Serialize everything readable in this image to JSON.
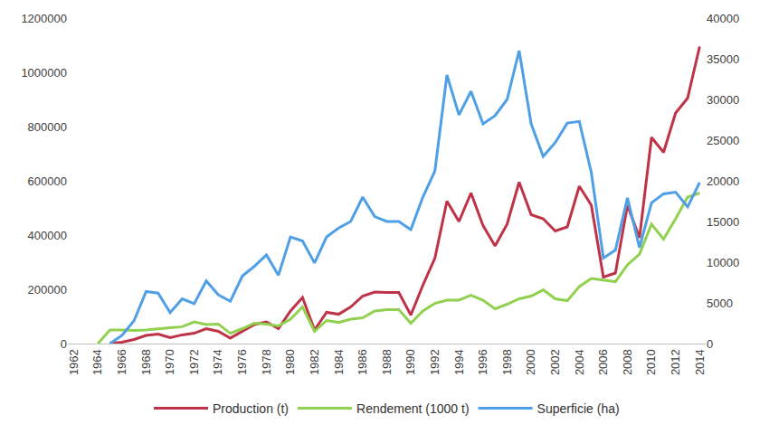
{
  "chart_data": {
    "type": "line",
    "x": [
      1962,
      1963,
      1964,
      1965,
      1966,
      1967,
      1968,
      1969,
      1970,
      1971,
      1972,
      1973,
      1974,
      1975,
      1976,
      1977,
      1978,
      1979,
      1980,
      1981,
      1982,
      1983,
      1984,
      1985,
      1986,
      1987,
      1988,
      1989,
      1990,
      1991,
      1992,
      1993,
      1994,
      1995,
      1996,
      1997,
      1998,
      1999,
      2000,
      2001,
      2002,
      2003,
      2004,
      2005,
      2006,
      2007,
      2008,
      2009,
      2010,
      2011,
      2012,
      2013,
      2014
    ],
    "xlim": [
      1961.5,
      2014.5
    ],
    "xticks": [
      1962,
      1964,
      1966,
      1968,
      1970,
      1972,
      1974,
      1976,
      1978,
      1980,
      1982,
      1984,
      1986,
      1988,
      1990,
      1992,
      1994,
      1996,
      1998,
      2000,
      2002,
      2004,
      2006,
      2008,
      2010,
      2012,
      2014
    ],
    "ylim": [
      0,
      1200000
    ],
    "yticks": [
      0,
      200000,
      400000,
      600000,
      800000,
      1000000,
      1200000
    ],
    "y2lim": [
      0,
      40000
    ],
    "y2ticks": [
      0,
      5000,
      10000,
      15000,
      20000,
      25000,
      30000,
      35000,
      40000
    ],
    "grid": false,
    "legend": "bottom",
    "series": [
      {
        "name": "Production (t)",
        "color": "#be3347",
        "axis": "y",
        "values": [
          null,
          null,
          null,
          0,
          5000,
          15000,
          30000,
          35000,
          22000,
          32000,
          38000,
          55000,
          45000,
          20000,
          45000,
          70000,
          80000,
          55000,
          120000,
          170000,
          50000,
          115000,
          108000,
          135000,
          175000,
          190000,
          188000,
          188000,
          105000,
          215000,
          315000,
          525000,
          450000,
          555000,
          435000,
          360000,
          440000,
          595000,
          475000,
          460000,
          415000,
          430000,
          580000,
          510000,
          245000,
          260000,
          510000,
          390000,
          760000,
          705000,
          850000,
          905000,
          1095000
        ]
      },
      {
        "name": "Rendement (1000 t)",
        "color": "#92d050",
        "axis": "y",
        "values": [
          null,
          null,
          0,
          50000,
          50000,
          48000,
          50000,
          55000,
          58000,
          62000,
          80000,
          70000,
          72000,
          38000,
          55000,
          75000,
          72000,
          65000,
          90000,
          135000,
          45000,
          85000,
          78000,
          90000,
          95000,
          120000,
          125000,
          125000,
          75000,
          120000,
          148000,
          160000,
          160000,
          178000,
          160000,
          128000,
          145000,
          165000,
          175000,
          198000,
          165000,
          158000,
          210000,
          240000,
          235000,
          228000,
          290000,
          330000,
          440000,
          385000,
          460000,
          540000,
          555000
        ]
      },
      {
        "name": "Superficie (ha)",
        "color": "#4f9fe6",
        "axis": "y2",
        "values": [
          null,
          null,
          null,
          0,
          1000,
          2800,
          6400,
          6200,
          3800,
          5500,
          4900,
          7700,
          6000,
          5200,
          8300,
          9500,
          10900,
          8400,
          13100,
          12600,
          9900,
          13100,
          14200,
          15000,
          18000,
          15600,
          15000,
          15000,
          14000,
          18000,
          21200,
          33000,
          28100,
          31000,
          27000,
          28000,
          30000,
          36000,
          27000,
          23000,
          24700,
          27100,
          27300,
          21000,
          10500,
          11500,
          17900,
          11800,
          17300,
          18400,
          18600,
          16800,
          19800
        ]
      }
    ]
  }
}
